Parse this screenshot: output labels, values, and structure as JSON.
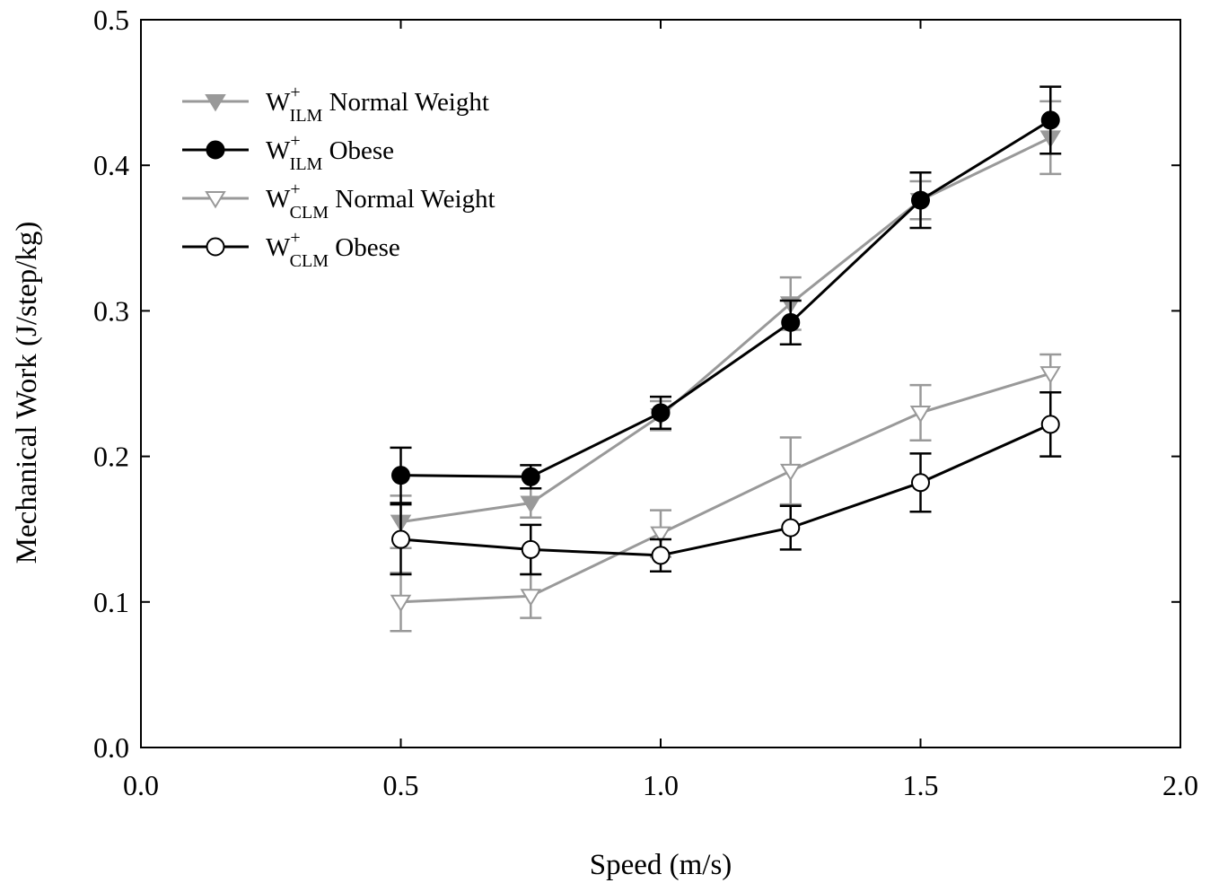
{
  "chart_data": {
    "type": "line",
    "title": "",
    "xlabel": "Speed (m/s)",
    "ylabel": "Mechanical Work (J/step/kg)",
    "xlim": [
      0.0,
      2.0
    ],
    "ylim": [
      0.0,
      0.5
    ],
    "xticks": [
      "0.0",
      "0.5",
      "1.0",
      "1.5",
      "2.0"
    ],
    "yticks": [
      "0.0",
      "0.1",
      "0.2",
      "0.3",
      "0.4",
      "0.5"
    ],
    "x": [
      0.5,
      0.75,
      1.0,
      1.25,
      1.5,
      1.75
    ],
    "grid": false,
    "legend_position": "top-left",
    "series": [
      {
        "name": "W+ILM Normal Weight",
        "legend": {
          "base": "W",
          "sup": "+",
          "sub": "ILM",
          "rest": " Normal Weight"
        },
        "color": "#999999",
        "marker": "triangle-down-filled",
        "values": [
          0.155,
          0.168,
          0.228,
          0.305,
          0.376,
          0.419
        ],
        "errors": [
          0.018,
          0.01,
          0.01,
          0.018,
          0.013,
          0.025
        ]
      },
      {
        "name": "W+ILM Obese",
        "legend": {
          "base": "W",
          "sup": "+",
          "sub": "ILM",
          "rest": " Obese"
        },
        "color": "#000000",
        "marker": "circle-filled",
        "values": [
          0.187,
          0.186,
          0.23,
          0.292,
          0.376,
          0.431
        ],
        "errors": [
          0.019,
          0.008,
          0.011,
          0.015,
          0.019,
          0.023
        ]
      },
      {
        "name": "W+CLM Normal Weight",
        "legend": {
          "base": "W",
          "sup": "+",
          "sub": "CLM",
          "rest": " Normal Weight"
        },
        "color": "#999999",
        "marker": "triangle-down-open",
        "values": [
          0.1,
          0.104,
          0.147,
          0.19,
          0.23,
          0.257
        ],
        "errors": [
          0.02,
          0.015,
          0.016,
          0.023,
          0.019,
          0.013
        ]
      },
      {
        "name": "W+CLM Obese",
        "legend": {
          "base": "W",
          "sup": "+",
          "sub": "CLM",
          "rest": " Obese"
        },
        "color": "#000000",
        "marker": "circle-open",
        "values": [
          0.143,
          0.136,
          0.132,
          0.151,
          0.182,
          0.222
        ],
        "errors": [
          0.024,
          0.017,
          0.011,
          0.015,
          0.02,
          0.022
        ]
      }
    ]
  }
}
